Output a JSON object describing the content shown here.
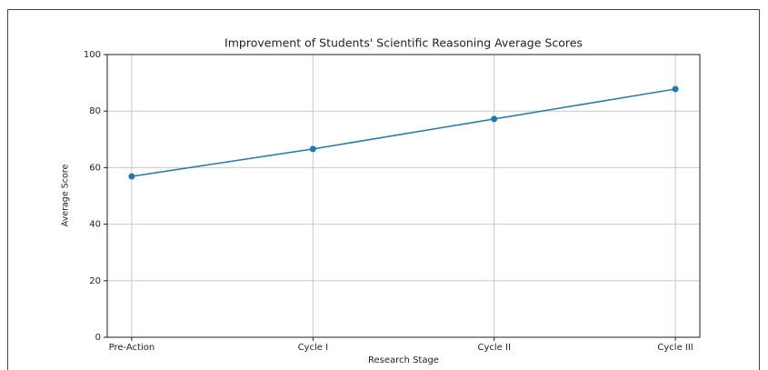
{
  "chart_data": {
    "type": "line",
    "title": "Improvement of Students' Scientific Reasoning Average Scores",
    "x_label": "Research Stage",
    "y_label": "Average Score",
    "categories": [
      "Pre-Action",
      "Cycle I",
      "Cycle II",
      "Cycle III"
    ],
    "series": [
      {
        "name": "Average Score",
        "color": "#1f77b4",
        "values": [
          56.9,
          66.6,
          77.2,
          87.8
        ]
      }
    ],
    "ylim": [
      0,
      100
    ],
    "yticks": [
      0,
      20,
      40,
      60,
      80,
      100
    ],
    "grid": true
  }
}
